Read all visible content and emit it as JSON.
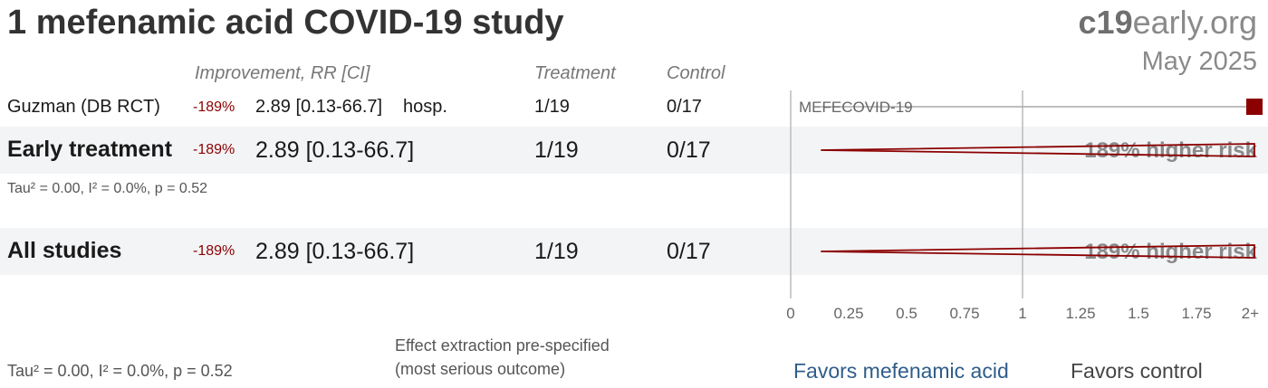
{
  "title": "1 mefenamic acid COVID-19 study",
  "brand": {
    "prefix": "c19",
    "suffix": "early.org"
  },
  "date": "May 2025",
  "headers": {
    "improvement": "Improvement, RR [CI]",
    "treatment": "Treatment",
    "control": "Control"
  },
  "study": {
    "name": "Guzman (DB RCT)",
    "improvement": "-189%",
    "rr": "2.89 [0.13-66.7]",
    "outcome": "hosp.",
    "treatment": "1/19",
    "control": "0/17",
    "label": "MEFECOVID-19"
  },
  "early": {
    "name": "Early treatment",
    "improvement": "-189%",
    "rr": "2.89 [0.13-66.7]",
    "treatment": "1/19",
    "control": "0/17",
    "risk_label": "189% higher risk",
    "heterogeneity": "Tau² = 0.00, I² = 0.0%, p = 0.52"
  },
  "all": {
    "name": "All studies",
    "improvement": "-189%",
    "rr": "2.89 [0.13-66.7]",
    "treatment": "1/19",
    "control": "0/17",
    "risk_label": "189% higher risk"
  },
  "footer": {
    "heterogeneity": "Tau² = 0.00, I² = 0.0%, p = 0.52",
    "note_line1": "Effect extraction pre-specified",
    "note_line2": "(most serious outcome)",
    "favors_left": "Favors mefenamic acid",
    "favors_right": "Favors control"
  },
  "colors": {
    "marker": "#8b0000",
    "favors_left": "#2f5d8a",
    "favors_right": "#444444"
  },
  "chart_data": {
    "type": "forest",
    "xlim": [
      0,
      2
    ],
    "ticks": [
      0,
      0.25,
      0.5,
      0.75,
      1,
      1.25,
      1.5,
      1.75,
      2
    ],
    "tick_labels": [
      "0",
      "0.25",
      "0.5",
      "0.75",
      "1",
      "1.25",
      "1.5",
      "1.75",
      "2+"
    ],
    "rows": [
      {
        "name": "MEFECOVID-19",
        "kind": "study",
        "rr": 2.89,
        "lower": 0.13,
        "upper": 66.7
      },
      {
        "name": "Early treatment",
        "kind": "pooled",
        "rr": 2.89,
        "lower": 0.13,
        "upper": 66.7
      },
      {
        "name": "All studies",
        "kind": "pooled",
        "rr": 2.89,
        "lower": 0.13,
        "upper": 66.7
      }
    ]
  }
}
